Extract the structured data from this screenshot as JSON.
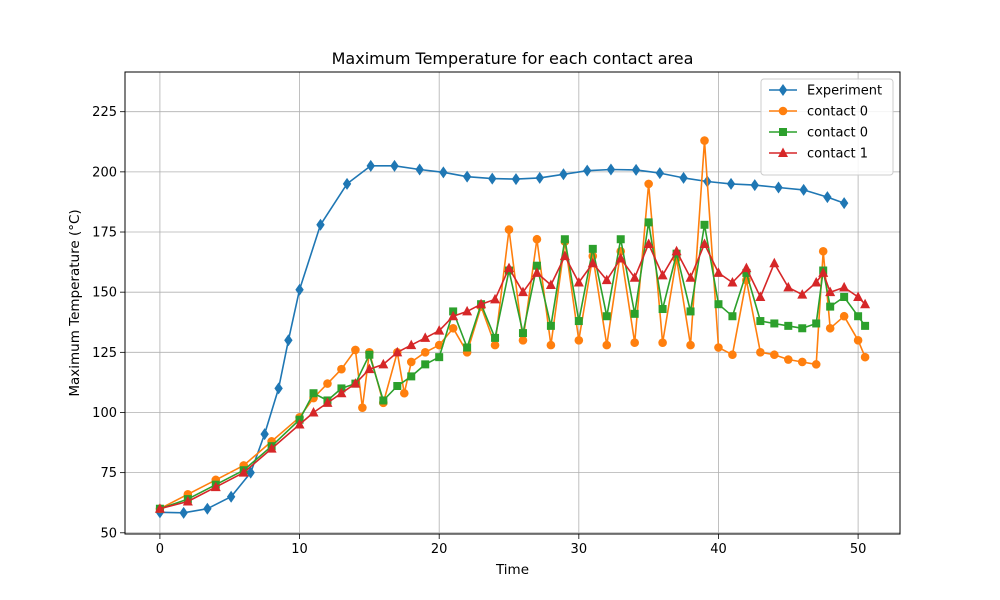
{
  "chart_data": {
    "type": "line",
    "title": "Maximum Temperature for each contact area",
    "xlabel": "Time",
    "ylabel": "Maximum Temperature (°C)",
    "xlim": [
      -2.5,
      53.0
    ],
    "ylim": [
      49.5,
      241.5
    ],
    "xticks": [
      0,
      10,
      20,
      30,
      40,
      50
    ],
    "yticks": [
      50,
      75,
      100,
      125,
      150,
      175,
      200,
      225
    ],
    "grid": true,
    "legend_position": "upper right",
    "series": [
      {
        "name": "Experiment",
        "color": "#1f77b4",
        "marker": "diamond",
        "x": [
          0,
          1.7,
          3.4,
          5.1,
          6.5,
          7.5,
          8.5,
          9.2,
          10,
          11.5,
          13.4,
          15.1,
          16.8,
          18.6,
          20.3,
          22.0,
          23.8,
          25.5,
          27.2,
          28.9,
          30.6,
          32.3,
          34.1,
          35.8,
          37.5,
          39.2,
          40.9,
          42.6,
          44.3,
          46.1,
          47.8,
          49.0
        ],
        "y": [
          58.5,
          58.3,
          60,
          65,
          75,
          91,
          110,
          130,
          151,
          178,
          195,
          202.5,
          202.5,
          201,
          199.8,
          198,
          197.2,
          197,
          197.5,
          199,
          200.5,
          201,
          200.8,
          199.5,
          197.5,
          196,
          195,
          194.5,
          193.5,
          192.5,
          189.5,
          187
        ]
      },
      {
        "name": "contact 0",
        "color": "#ff7f0e",
        "marker": "circle",
        "x": [
          0,
          2,
          4,
          6,
          8,
          10,
          11,
          12,
          13,
          14,
          14.5,
          15,
          16,
          17,
          17.5,
          18,
          19,
          20,
          21,
          22,
          23,
          24,
          25,
          26,
          27,
          28,
          29,
          30,
          31,
          32,
          33,
          34,
          35,
          36,
          37,
          38,
          39,
          40,
          41,
          42,
          43,
          44,
          45,
          46,
          47,
          47.5,
          48,
          49,
          50,
          50.5
        ],
        "y": [
          60,
          66,
          72,
          78,
          88,
          98,
          106,
          112,
          118,
          126,
          102,
          125,
          104,
          125,
          108,
          121,
          125,
          128,
          135,
          125,
          144,
          128,
          176,
          130,
          172,
          128,
          171,
          130,
          165,
          128,
          167,
          129,
          195,
          129,
          164,
          128,
          213,
          127,
          124,
          155,
          125,
          124,
          122,
          121,
          120,
          167,
          135,
          140,
          130,
          123
        ]
      },
      {
        "name": "contact 0",
        "color": "#2ca02c",
        "marker": "square",
        "x": [
          0,
          2,
          4,
          6,
          8,
          10,
          11,
          12,
          13,
          14,
          15,
          16,
          17,
          18,
          19,
          20,
          21,
          22,
          23,
          24,
          25,
          26,
          27,
          28,
          29,
          30,
          31,
          32,
          33,
          34,
          35,
          36,
          37,
          38,
          39,
          40,
          41,
          42,
          43,
          44,
          45,
          46,
          47,
          47.5,
          48,
          49,
          50,
          50.5
        ],
        "y": [
          60,
          64,
          70,
          76,
          86,
          97,
          108,
          105,
          110,
          112,
          124,
          105,
          111,
          115,
          120,
          123,
          142,
          127,
          145,
          131,
          159,
          133,
          161,
          136,
          172,
          138,
          168,
          140,
          172,
          141,
          179,
          143,
          166,
          142,
          178,
          145,
          140,
          158,
          138,
          137,
          136,
          135,
          137,
          159,
          144,
          148,
          140,
          136
        ]
      },
      {
        "name": "contact 1",
        "color": "#d62728",
        "marker": "triangle",
        "x": [
          0,
          2,
          4,
          6,
          8,
          10,
          11,
          12,
          13,
          14,
          15,
          16,
          17,
          18,
          19,
          20,
          21,
          22,
          23,
          24,
          25,
          26,
          27,
          28,
          29,
          30,
          31,
          32,
          33,
          34,
          35,
          36,
          37,
          38,
          39,
          40,
          41,
          42,
          43,
          44,
          45,
          46,
          47,
          47.5,
          48,
          49,
          50,
          50.5
        ],
        "y": [
          60,
          63,
          69,
          75,
          85,
          95,
          100,
          104,
          108,
          112,
          118,
          120,
          125,
          128,
          131,
          134,
          140,
          142,
          145,
          147,
          160,
          150,
          158,
          153,
          165,
          154,
          162,
          155,
          164,
          156,
          170,
          157,
          167,
          156,
          170,
          158,
          154,
          160,
          148,
          162,
          152,
          149,
          154,
          158,
          150,
          152,
          148,
          145
        ]
      }
    ]
  }
}
